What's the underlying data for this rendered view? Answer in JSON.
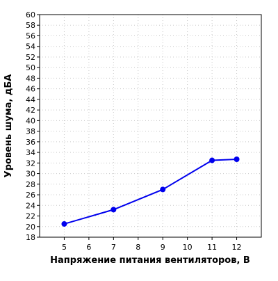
{
  "chart_data": {
    "type": "line",
    "xlabel": "Напряжение питания вентиляторов, В",
    "ylabel": "Уровень шума, дБА",
    "xlim": [
      4,
      13
    ],
    "ylim": [
      18,
      60
    ],
    "x_ticks": [
      5,
      6,
      7,
      8,
      9,
      10,
      11,
      12
    ],
    "y_ticks": [
      18,
      20,
      22,
      24,
      26,
      28,
      30,
      32,
      34,
      36,
      38,
      40,
      42,
      44,
      46,
      48,
      50,
      52,
      54,
      56,
      58,
      60
    ],
    "grid": true,
    "series": [
      {
        "color": "#0000ee",
        "x": [
          5,
          7,
          9,
          11,
          12
        ],
        "y": [
          20.5,
          23.2,
          27.0,
          32.5,
          32.7
        ]
      }
    ]
  }
}
